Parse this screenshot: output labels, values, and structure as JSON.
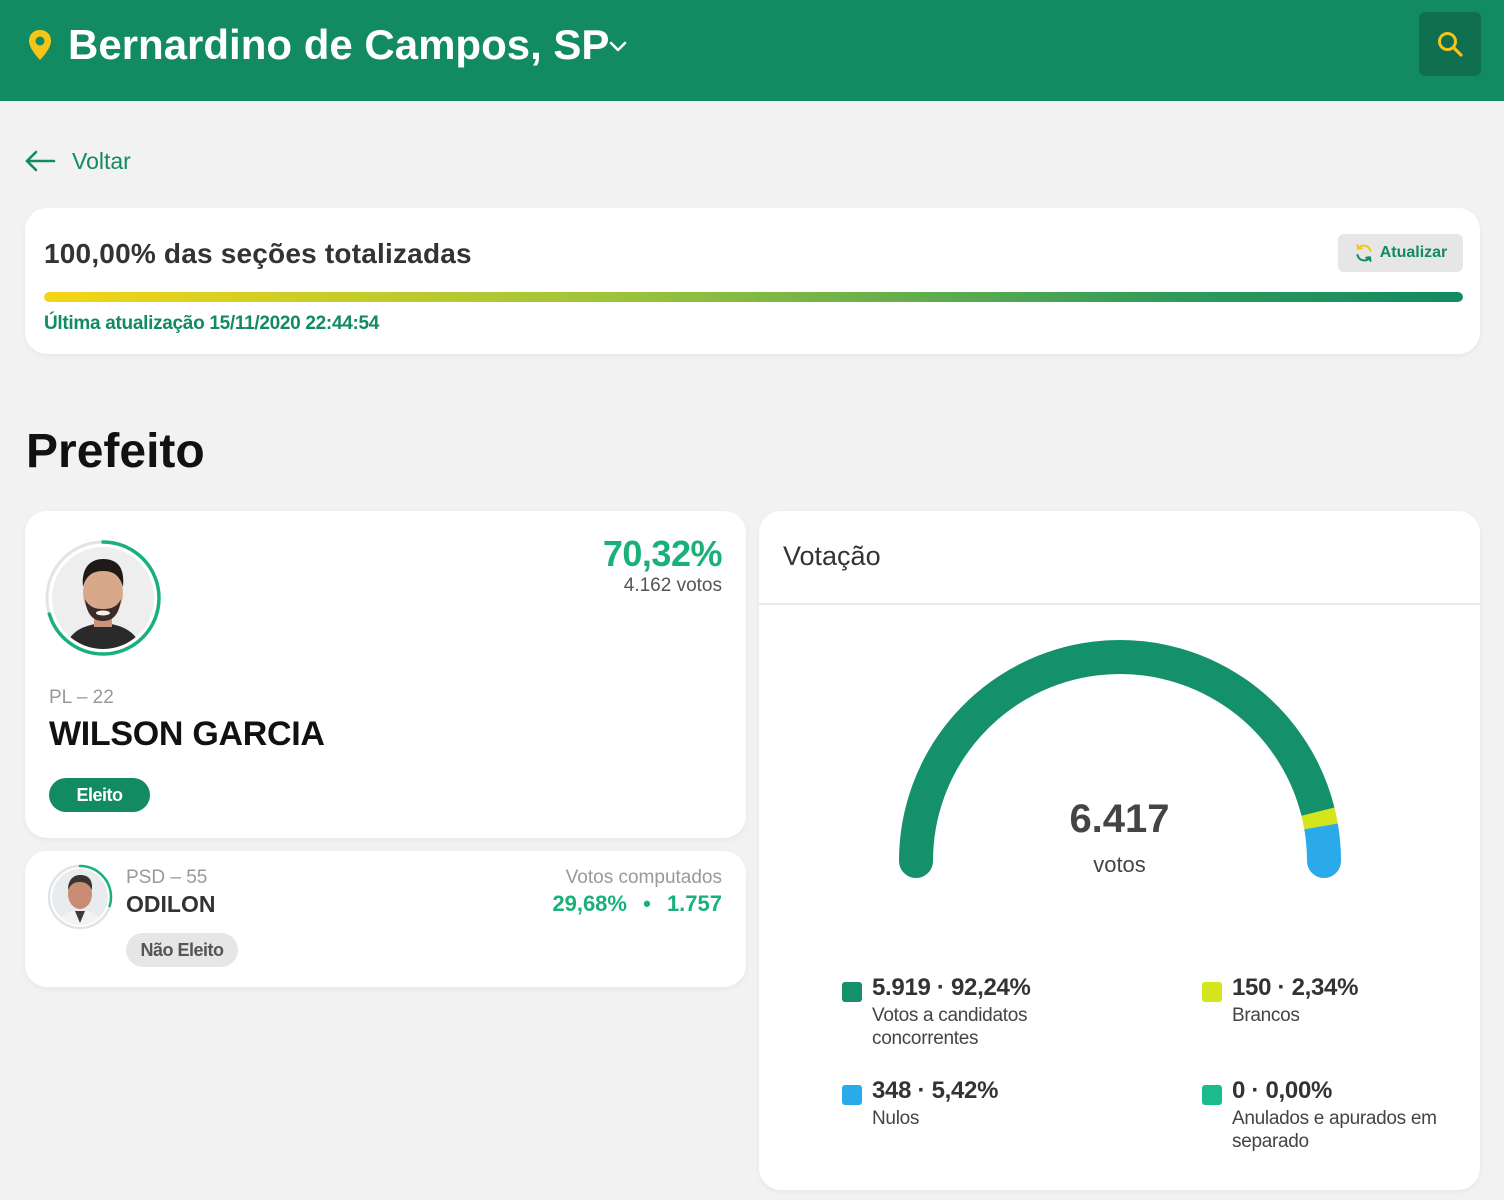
{
  "header": {
    "city": "Bernardino de Campos, SP",
    "icons": {
      "location": "location-pin-icon",
      "dropdown": "chevron-down-icon",
      "search": "search-icon"
    },
    "colors": {
      "background": "#128a62",
      "accent": "#f5c518"
    }
  },
  "nav": {
    "back_label": "Voltar"
  },
  "status": {
    "title": "100,00% das seções totalizadas",
    "progress_percent": 100,
    "last_update": "Última atualização 15/11/2020 22:44:54",
    "refresh_label": "Atualizar"
  },
  "section": {
    "title": "Prefeito"
  },
  "candidates": [
    {
      "party": "PL – 22",
      "name": "WILSON GARCIA",
      "percent": "70,32%",
      "votes": "4.162 votos",
      "status": "Eleito",
      "vote_share": 0.7032
    },
    {
      "party": "PSD – 55",
      "name": "ODILON",
      "computed_label": "Votos computados",
      "percent": "29,68%",
      "separator": "•",
      "votes": "1.757",
      "status": "Não Eleito",
      "vote_share": 0.2968
    }
  ],
  "voting": {
    "title": "Votação",
    "total": "6.417",
    "total_label": "votos",
    "chart_data": {
      "type": "gauge",
      "total": 6417,
      "segments": [
        {
          "value": 5919,
          "percent": 92.24,
          "color": "#14906a"
        },
        {
          "value": 150,
          "percent": 2.34,
          "color": "#d4e51c"
        },
        {
          "value": 348,
          "percent": 5.42,
          "color": "#2aaae8"
        },
        {
          "value": 0,
          "percent": 0.0,
          "color": "#1abc8c"
        }
      ]
    },
    "legend": [
      {
        "main": "5.919 · 92,24%",
        "desc": "Votos a candidatos concorrentes",
        "color": "#14906a"
      },
      {
        "main": "150 · 2,34%",
        "desc": "Brancos",
        "color": "#d4e51c"
      },
      {
        "main": "348 · 5,42%",
        "desc": "Nulos",
        "color": "#2aaae8"
      },
      {
        "main": "0 · 0,00%",
        "desc": "Anulados e apurados em separado",
        "color": "#1abc8c"
      }
    ]
  }
}
